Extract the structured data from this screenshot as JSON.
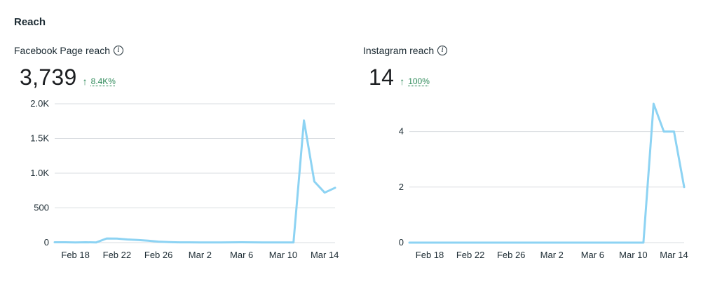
{
  "section_title": "Reach",
  "cards": [
    {
      "title": "Facebook Page reach",
      "value": "3,739",
      "change": "8.4K%",
      "change_color": "#2f8a5a"
    },
    {
      "title": "Instagram reach",
      "value": "14",
      "change": "100%",
      "change_color": "#2f8a5a"
    }
  ],
  "chart_data": [
    {
      "type": "line",
      "title": "Facebook Page reach",
      "ylim": [
        0,
        2000
      ],
      "yticks": [
        0,
        500,
        1000,
        1500,
        2000
      ],
      "ytick_labels": [
        "0",
        "500",
        "1.0K",
        "1.5K",
        "2.0K"
      ],
      "grid": true,
      "xlim": [
        0,
        27
      ],
      "x_ticks": [
        {
          "label": "Feb 18",
          "x": 2
        },
        {
          "label": "Feb 22",
          "x": 6
        },
        {
          "label": "Feb 26",
          "x": 10
        },
        {
          "label": "Mar 2",
          "x": 14
        },
        {
          "label": "Mar 6",
          "x": 18
        },
        {
          "label": "Mar 10",
          "x": 22
        },
        {
          "label": "Mar 14",
          "x": 26
        }
      ],
      "series": [
        {
          "name": "Facebook Page reach",
          "color": "#8dd3f3",
          "x": [
            0,
            1,
            2,
            3,
            4,
            5,
            6,
            7,
            8,
            9,
            10,
            11,
            12,
            13,
            14,
            15,
            16,
            17,
            18,
            19,
            20,
            21,
            22,
            23,
            24,
            25,
            26,
            27
          ],
          "values": [
            5,
            5,
            3,
            5,
            3,
            60,
            58,
            45,
            38,
            28,
            14,
            8,
            4,
            4,
            3,
            3,
            3,
            4,
            5,
            4,
            3,
            3,
            3,
            3,
            1760,
            880,
            720,
            790
          ]
        }
      ]
    },
    {
      "type": "line",
      "title": "Instagram reach",
      "ylim": [
        0,
        5
      ],
      "yticks": [
        0,
        2,
        4
      ],
      "ytick_labels": [
        "0",
        "2",
        "4"
      ],
      "grid": true,
      "xlim": [
        0,
        27
      ],
      "x_ticks": [
        {
          "label": "Feb 18",
          "x": 2
        },
        {
          "label": "Feb 22",
          "x": 6
        },
        {
          "label": "Feb 26",
          "x": 10
        },
        {
          "label": "Mar 2",
          "x": 14
        },
        {
          "label": "Mar 6",
          "x": 18
        },
        {
          "label": "Mar 10",
          "x": 22
        },
        {
          "label": "Mar 14",
          "x": 26
        }
      ],
      "series": [
        {
          "name": "Instagram reach",
          "color": "#8dd3f3",
          "x": [
            0,
            1,
            2,
            3,
            4,
            5,
            6,
            7,
            8,
            9,
            10,
            11,
            12,
            13,
            14,
            15,
            16,
            17,
            18,
            19,
            20,
            21,
            22,
            23,
            24,
            25,
            26,
            27
          ],
          "values": [
            0,
            0,
            0,
            0,
            0,
            0,
            0,
            0,
            0,
            0,
            0,
            0,
            0,
            0,
            0,
            0,
            0,
            0,
            0,
            0,
            0,
            0,
            0,
            0,
            5,
            4,
            4,
            2
          ]
        }
      ]
    }
  ]
}
